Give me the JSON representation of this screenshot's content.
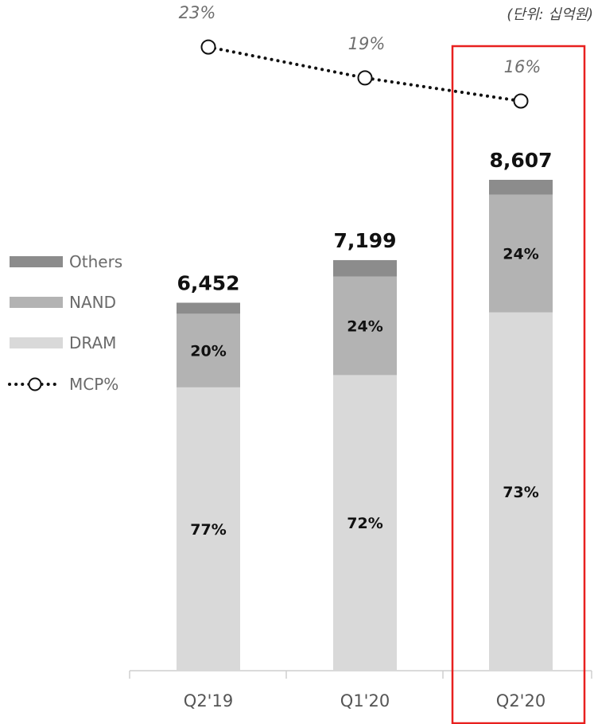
{
  "unit_label": "(단위: 십억원)",
  "legend": {
    "others": "Others",
    "nand": "NAND",
    "dram": "DRAM",
    "mcp": "MCP%"
  },
  "chart_data": {
    "type": "bar",
    "stacked": true,
    "categories": [
      "Q2'19",
      "Q1'20",
      "Q2'20"
    ],
    "totals": [
      6452,
      7199,
      8607
    ],
    "total_labels": [
      "6,452",
      "7,199",
      "8,607"
    ],
    "series": [
      {
        "name": "DRAM",
        "share": [
          0.77,
          0.72,
          0.73
        ],
        "labels": [
          "77%",
          "72%",
          "73%"
        ],
        "color": "#d9d9d9"
      },
      {
        "name": "NAND",
        "share": [
          0.2,
          0.24,
          0.24
        ],
        "labels": [
          "20%",
          "24%",
          "24%"
        ],
        "color": "#b3b3b3"
      },
      {
        "name": "Others",
        "share": [
          0.03,
          0.04,
          0.03
        ],
        "labels": [
          "",
          "",
          ""
        ],
        "color": "#8c8c8c"
      }
    ],
    "line": {
      "name": "MCP%",
      "values": [
        23,
        19,
        16
      ],
      "labels": [
        "23%",
        "19%",
        "16%"
      ],
      "style": "dotted",
      "color": "#111111"
    },
    "highlight_category": "Q2'20",
    "highlight_color": "#e8201f",
    "legend_position": "left"
  }
}
